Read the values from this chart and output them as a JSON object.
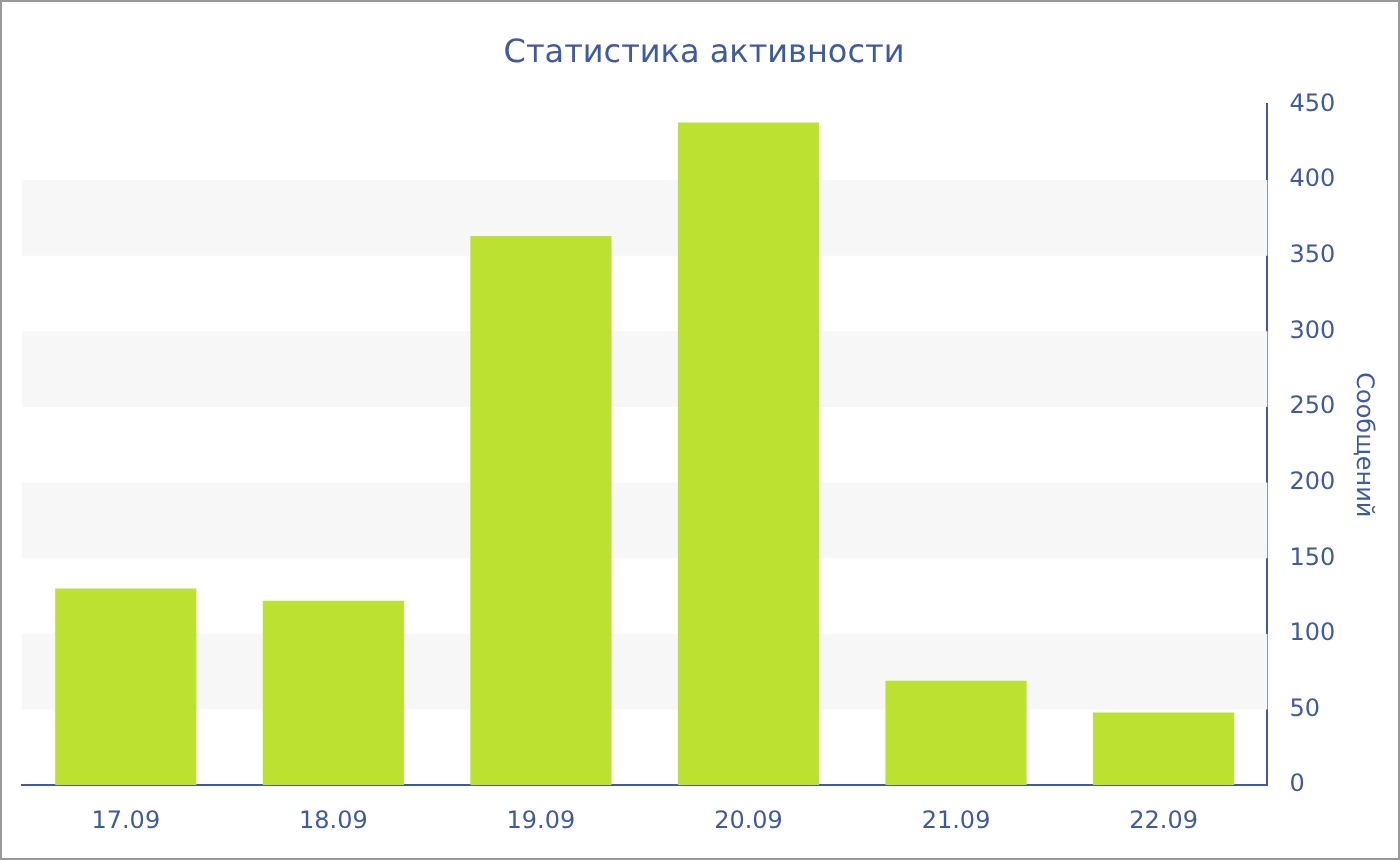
{
  "chart_data": {
    "type": "bar",
    "title": "Статистика активности",
    "ylabel": "Сообщений",
    "categories": [
      "17.09",
      "18.09",
      "19.09",
      "20.09",
      "21.09",
      "22.09"
    ],
    "values": [
      130,
      122,
      363,
      438,
      69,
      48
    ],
    "color": "#bce130",
    "ylim": [
      0,
      450
    ],
    "yticks": [
      0,
      50,
      100,
      150,
      200,
      250,
      300,
      350,
      400,
      450
    ],
    "bands": [
      {
        "axis": "y",
        "from": 50,
        "to": 100,
        "color": "#f7f7f7"
      },
      {
        "axis": "y",
        "from": 150,
        "to": 200,
        "color": "#f7f7f7"
      },
      {
        "axis": "y",
        "from": 250,
        "to": 300,
        "color": "#f7f7f7"
      },
      {
        "axis": "y",
        "from": 350,
        "to": 400,
        "color": "#f7f7f7"
      }
    ]
  }
}
